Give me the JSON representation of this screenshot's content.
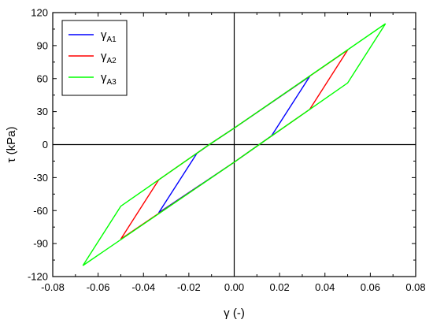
{
  "chart_data": {
    "type": "line",
    "xlabel": "γ (-)",
    "ylabel": "τ (kPa)",
    "xlim": [
      -0.08,
      0.08
    ],
    "ylim": [
      -120,
      120
    ],
    "x_ticks": [
      -0.08,
      -0.06,
      -0.04,
      -0.02,
      0.0,
      0.02,
      0.04,
      0.06,
      0.08
    ],
    "x_tick_labels": [
      "-0.08",
      "-0.06",
      "-0.04",
      "-0.02",
      "0.00",
      "0.02",
      "0.04",
      "0.06",
      "0.08"
    ],
    "y_ticks": [
      -120,
      -90,
      -60,
      -30,
      0,
      30,
      60,
      90,
      120
    ],
    "y_tick_labels": [
      "-120",
      "-90",
      "-60",
      "-30",
      "0",
      "30",
      "60",
      "90",
      "120"
    ],
    "zero_lines": true,
    "grid": false,
    "legend_position": "top-left",
    "series": [
      {
        "name": "γ",
        "subscript": "A1",
        "color": "#0000ff",
        "points": [
          [
            0.0333,
            62
          ],
          [
            0.0165,
            8
          ],
          [
            0.011,
            0
          ],
          [
            0.0,
            -16
          ],
          [
            -0.0333,
            -62
          ],
          [
            -0.0165,
            -8
          ],
          [
            -0.011,
            0
          ],
          [
            0.0,
            15
          ],
          [
            0.0333,
            62
          ]
        ]
      },
      {
        "name": "γ",
        "subscript": "A2",
        "color": "#ff0000",
        "points": [
          [
            0.05,
            86
          ],
          [
            0.0333,
            32
          ],
          [
            0.011,
            0
          ],
          [
            0.0,
            -16
          ],
          [
            -0.05,
            -86
          ],
          [
            -0.0333,
            -32
          ],
          [
            -0.011,
            0
          ],
          [
            0.0,
            15
          ],
          [
            0.05,
            86
          ]
        ]
      },
      {
        "name": "γ",
        "subscript": "A3",
        "color": "#00ff00",
        "points": [
          [
            0.0667,
            110
          ],
          [
            0.05,
            56
          ],
          [
            0.011,
            0
          ],
          [
            0.0,
            -16
          ],
          [
            -0.0667,
            -110
          ],
          [
            -0.05,
            -56
          ],
          [
            -0.011,
            0
          ],
          [
            0.0,
            15
          ],
          [
            0.0667,
            110
          ]
        ]
      }
    ]
  }
}
